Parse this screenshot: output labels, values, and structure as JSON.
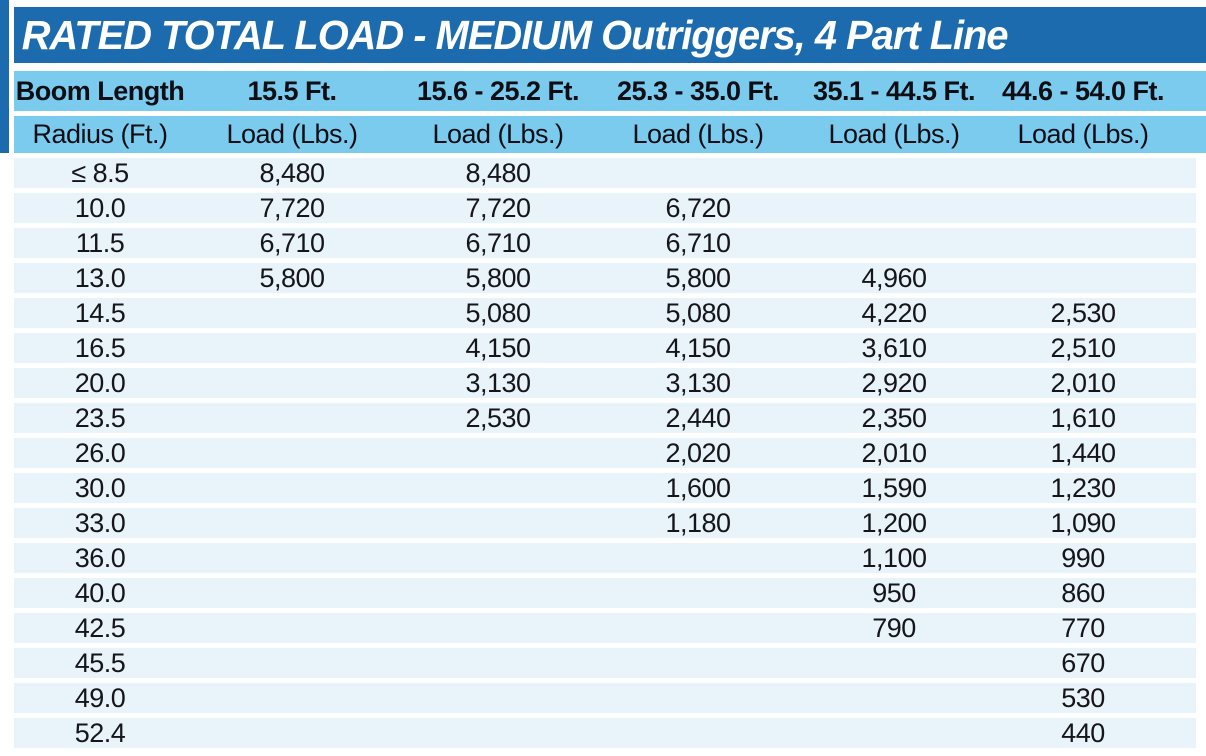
{
  "title": "RATED TOTAL LOAD - MEDIUM Outriggers, 4 Part Line",
  "table": {
    "header_row1": [
      "Boom Length",
      "15.5 Ft.",
      "15.6 - 25.2 Ft.",
      "25.3 - 35.0 Ft.",
      "35.1 - 44.5 Ft.",
      "44.6 - 54.0 Ft."
    ],
    "header_row2": [
      "Radius (Ft.)",
      "Load (Lbs.)",
      "Load (Lbs.)",
      "Load (Lbs.)",
      "Load (Lbs.)",
      "Load (Lbs.)"
    ],
    "rows": [
      {
        "radius": "≤ 8.5",
        "loads": [
          "8,480",
          "8,480",
          "",
          "",
          ""
        ]
      },
      {
        "radius": "10.0",
        "loads": [
          "7,720",
          "7,720",
          "6,720",
          "",
          ""
        ]
      },
      {
        "radius": "11.5",
        "loads": [
          "6,710",
          "6,710",
          "6,710",
          "",
          ""
        ]
      },
      {
        "radius": "13.0",
        "loads": [
          "5,800",
          "5,800",
          "5,800",
          "4,960",
          ""
        ]
      },
      {
        "radius": "14.5",
        "loads": [
          "",
          "5,080",
          "5,080",
          "4,220",
          "2,530"
        ]
      },
      {
        "radius": "16.5",
        "loads": [
          "",
          "4,150",
          "4,150",
          "3,610",
          "2,510"
        ]
      },
      {
        "radius": "20.0",
        "loads": [
          "",
          "3,130",
          "3,130",
          "2,920",
          "2,010"
        ]
      },
      {
        "radius": "23.5",
        "loads": [
          "",
          "2,530",
          "2,440",
          "2,350",
          "1,610"
        ]
      },
      {
        "radius": "26.0",
        "loads": [
          "",
          "",
          "2,020",
          "2,010",
          "1,440"
        ]
      },
      {
        "radius": "30.0",
        "loads": [
          "",
          "",
          "1,600",
          "1,590",
          "1,230"
        ]
      },
      {
        "radius": "33.0",
        "loads": [
          "",
          "",
          "1,180",
          "1,200",
          "1,090"
        ]
      },
      {
        "radius": "36.0",
        "loads": [
          "",
          "",
          "",
          "1,100",
          "990"
        ]
      },
      {
        "radius": "40.0",
        "loads": [
          "",
          "",
          "",
          "950",
          "860"
        ]
      },
      {
        "radius": "42.5",
        "loads": [
          "",
          "",
          "",
          "790",
          "770"
        ]
      },
      {
        "radius": "45.5",
        "loads": [
          "",
          "",
          "",
          "",
          "670"
        ]
      },
      {
        "radius": "49.0",
        "loads": [
          "",
          "",
          "",
          "",
          "530"
        ]
      },
      {
        "radius": "52.4",
        "loads": [
          "",
          "",
          "",
          "",
          "440"
        ]
      }
    ]
  },
  "colors": {
    "title_bar_blue": "#1b6bae",
    "header_band_blue": "#7bcbee",
    "row_stripe_blue": "#e9f3fa",
    "title_text": "#ffffff",
    "body_text": "#15151a"
  }
}
